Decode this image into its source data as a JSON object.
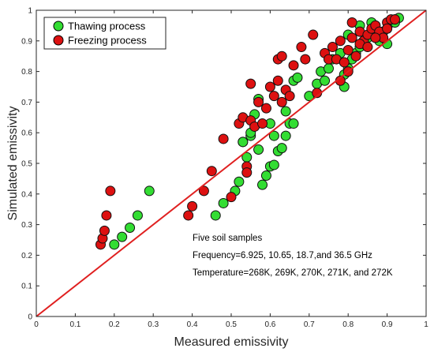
{
  "chart_data": {
    "type": "scatter",
    "xlabel": "Measured emissivity",
    "ylabel": "Simulated emissivity",
    "xlim": [
      0,
      1
    ],
    "ylim": [
      0,
      1
    ],
    "xticks": [
      "0",
      "0.1",
      "0.2",
      "0.3",
      "0.4",
      "0.5",
      "0.6",
      "0.7",
      "0.8",
      "0.9",
      "1"
    ],
    "yticks": [
      "0",
      "0.1",
      "0.2",
      "0.3",
      "0.4",
      "0.5",
      "0.6",
      "0.7",
      "0.8",
      "0.9",
      "1"
    ],
    "grid": false,
    "legend_position": "top-left",
    "reference_line": {
      "from": [
        0,
        0
      ],
      "to": [
        1,
        1
      ],
      "color": "#e02020"
    },
    "annotations": [
      "Five soil samples",
      "Frequency=6.925, 10.65, 18.7,and 36.5 GHz",
      "Temperature=268K, 269K, 270K, 271K, and 272K"
    ],
    "series": [
      {
        "name": "Thawing process",
        "color": "#33dd33",
        "points": [
          [
            0.2,
            0.235
          ],
          [
            0.22,
            0.26
          ],
          [
            0.24,
            0.29
          ],
          [
            0.26,
            0.33
          ],
          [
            0.29,
            0.41
          ],
          [
            0.46,
            0.33
          ],
          [
            0.48,
            0.37
          ],
          [
            0.51,
            0.41
          ],
          [
            0.52,
            0.44
          ],
          [
            0.53,
            0.57
          ],
          [
            0.54,
            0.52
          ],
          [
            0.55,
            0.59
          ],
          [
            0.56,
            0.66
          ],
          [
            0.57,
            0.71
          ],
          [
            0.58,
            0.43
          ],
          [
            0.59,
            0.46
          ],
          [
            0.6,
            0.49
          ],
          [
            0.61,
            0.495
          ],
          [
            0.6,
            0.63
          ],
          [
            0.61,
            0.59
          ],
          [
            0.62,
            0.54
          ],
          [
            0.63,
            0.55
          ],
          [
            0.64,
            0.59
          ],
          [
            0.65,
            0.63
          ],
          [
            0.66,
            0.63
          ],
          [
            0.64,
            0.67
          ],
          [
            0.66,
            0.77
          ],
          [
            0.67,
            0.78
          ],
          [
            0.7,
            0.72
          ],
          [
            0.72,
            0.76
          ],
          [
            0.73,
            0.8
          ],
          [
            0.74,
            0.77
          ],
          [
            0.75,
            0.81
          ],
          [
            0.76,
            0.84
          ],
          [
            0.78,
            0.86
          ],
          [
            0.79,
            0.79
          ],
          [
            0.8,
            0.81
          ],
          [
            0.81,
            0.84
          ],
          [
            0.82,
            0.86
          ],
          [
            0.83,
            0.88
          ],
          [
            0.84,
            0.89
          ],
          [
            0.85,
            0.91
          ],
          [
            0.86,
            0.93
          ],
          [
            0.87,
            0.95
          ],
          [
            0.88,
            0.9
          ],
          [
            0.89,
            0.93
          ],
          [
            0.9,
            0.94
          ],
          [
            0.91,
            0.96
          ],
          [
            0.92,
            0.97
          ],
          [
            0.93,
            0.975
          ],
          [
            0.8,
            0.92
          ],
          [
            0.83,
            0.95
          ],
          [
            0.86,
            0.96
          ],
          [
            0.9,
            0.89
          ],
          [
            0.92,
            0.96
          ],
          [
            0.57,
            0.545
          ],
          [
            0.55,
            0.6
          ],
          [
            0.53,
            0.57
          ],
          [
            0.79,
            0.75
          ],
          [
            0.84,
            0.9
          ]
        ]
      },
      {
        "name": "Freezing process",
        "color": "#dd1111",
        "points": [
          [
            0.165,
            0.235
          ],
          [
            0.17,
            0.255
          ],
          [
            0.175,
            0.28
          ],
          [
            0.18,
            0.33
          ],
          [
            0.19,
            0.41
          ],
          [
            0.39,
            0.33
          ],
          [
            0.4,
            0.36
          ],
          [
            0.43,
            0.41
          ],
          [
            0.45,
            0.475
          ],
          [
            0.48,
            0.58
          ],
          [
            0.5,
            0.39
          ],
          [
            0.52,
            0.63
          ],
          [
            0.53,
            0.65
          ],
          [
            0.54,
            0.49
          ],
          [
            0.54,
            0.47
          ],
          [
            0.55,
            0.76
          ],
          [
            0.55,
            0.64
          ],
          [
            0.56,
            0.62
          ],
          [
            0.57,
            0.7
          ],
          [
            0.58,
            0.63
          ],
          [
            0.59,
            0.68
          ],
          [
            0.6,
            0.75
          ],
          [
            0.61,
            0.72
          ],
          [
            0.62,
            0.77
          ],
          [
            0.62,
            0.84
          ],
          [
            0.63,
            0.85
          ],
          [
            0.63,
            0.7
          ],
          [
            0.64,
            0.74
          ],
          [
            0.65,
            0.72
          ],
          [
            0.66,
            0.82
          ],
          [
            0.68,
            0.88
          ],
          [
            0.69,
            0.84
          ],
          [
            0.71,
            0.92
          ],
          [
            0.72,
            0.73
          ],
          [
            0.74,
            0.86
          ],
          [
            0.75,
            0.84
          ],
          [
            0.76,
            0.88
          ],
          [
            0.77,
            0.84
          ],
          [
            0.78,
            0.9
          ],
          [
            0.79,
            0.83
          ],
          [
            0.8,
            0.87
          ],
          [
            0.81,
            0.91
          ],
          [
            0.82,
            0.85
          ],
          [
            0.83,
            0.93
          ],
          [
            0.84,
            0.9
          ],
          [
            0.85,
            0.92
          ],
          [
            0.86,
            0.94
          ],
          [
            0.87,
            0.95
          ],
          [
            0.88,
            0.93
          ],
          [
            0.89,
            0.91
          ],
          [
            0.9,
            0.96
          ],
          [
            0.91,
            0.97
          ],
          [
            0.92,
            0.97
          ],
          [
            0.81,
            0.96
          ],
          [
            0.83,
            0.89
          ],
          [
            0.85,
            0.88
          ],
          [
            0.87,
            0.91
          ],
          [
            0.9,
            0.94
          ],
          [
            0.78,
            0.77
          ],
          [
            0.8,
            0.8
          ]
        ]
      }
    ]
  }
}
